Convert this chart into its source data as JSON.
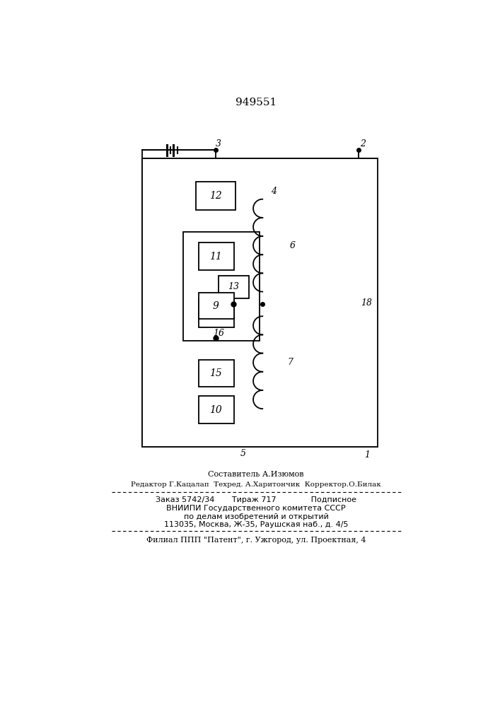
{
  "title": "949551",
  "bg_color": "#ffffff",
  "line_color": "#000000",
  "footer_lines": [
    "Составитель А.Изюмов",
    "Редактор Г.Кацалап  Техред. А.Харитончик  Корректор.О.Билак",
    "Заказ 5742/34       Тираж 717              Подписное",
    "ВНИИПИ Государственного комитета СССР",
    "по делам изобретений и открытий",
    "113035, Москва, Ж-35, Раушская наб., д. 4/5",
    "Филиал ППП \"Патент\", г. Ужгород, ул. Проектная, 4"
  ]
}
